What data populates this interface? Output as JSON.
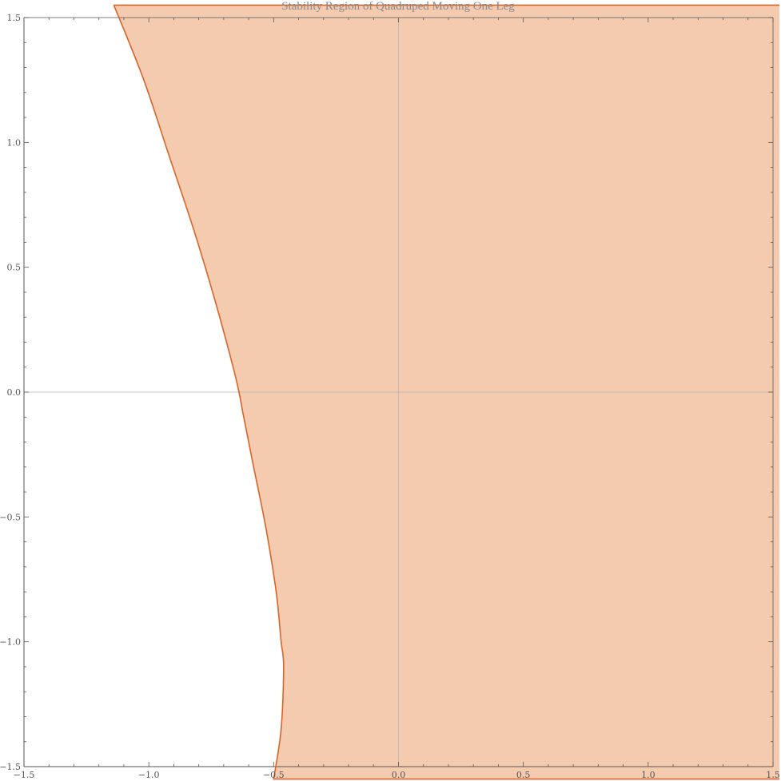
{
  "chart_data": {
    "type": "area",
    "title": "Stability Region of Quadruped Moving One Leg",
    "xlabel": "",
    "ylabel": "",
    "xlim": [
      -1.5,
      1.5
    ],
    "ylim": [
      -1.5,
      1.5
    ],
    "x_ticks": [
      -1.5,
      -1.0,
      -0.5,
      0.0,
      0.5,
      1.0,
      1.5
    ],
    "x_tick_labels": [
      "−1.5",
      "−1.0",
      "−0.5",
      "0.0",
      "0.5",
      "1.0",
      "1.5"
    ],
    "y_ticks": [
      1.5,
      1.0,
      0.5,
      0.0,
      -0.5,
      -1.0,
      -1.5
    ],
    "y_tick_labels": [
      "1.5",
      "1.0",
      "0.5",
      "0.0",
      "−0.5",
      "−1.0",
      "−1.5"
    ],
    "grid": false,
    "axes_lines_at_origin": true,
    "region_boundary": {
      "description": "left boundary curve of shaded stable region; region extends right to x = 1.5",
      "x": [
        -1.14,
        -1.02,
        -0.92,
        -0.82,
        -0.73,
        -0.65,
        -0.62,
        -0.58,
        -0.53,
        -0.49,
        -0.47,
        -0.46,
        -0.47,
        -0.5
      ],
      "y": [
        1.55,
        1.25,
        0.95,
        0.65,
        0.35,
        0.05,
        -0.1,
        -0.3,
        -0.55,
        -0.8,
        -1.0,
        -1.1,
        -1.35,
        -1.55
      ]
    },
    "colors": {
      "fill": "#f5cbb0",
      "boundary": "#d9642a",
      "axes": "#555555"
    }
  }
}
